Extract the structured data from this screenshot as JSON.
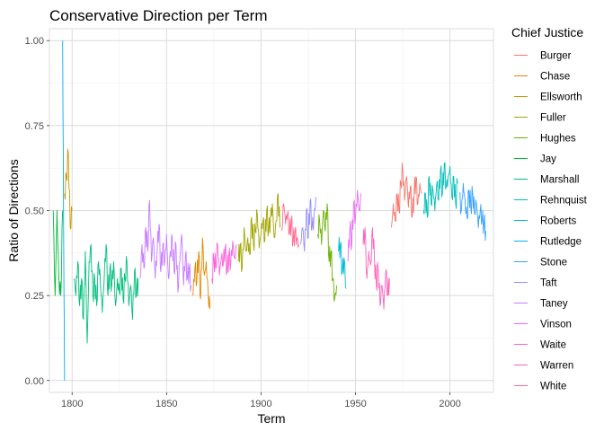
{
  "chart_data": {
    "type": "line",
    "title": "Conservative Direction per Term",
    "xlabel": "Term",
    "ylabel": "Ratio of Directions",
    "xlim": [
      1788,
      2023
    ],
    "ylim": [
      -0.035,
      1.035
    ],
    "x_ticks": [
      1800,
      1850,
      1900,
      1950,
      2000
    ],
    "y_ticks": [
      0.0,
      0.25,
      0.5,
      0.75,
      1.0
    ],
    "y_tick_labels": [
      "0.00",
      "0.25",
      "0.50",
      "0.75",
      "1.00"
    ],
    "grid": true,
    "legend": {
      "title": "Chief Justice",
      "position": "right"
    },
    "series": [
      {
        "name": "Burger",
        "color": "#F8766D",
        "start": 1969,
        "end": 1985,
        "anchors": [
          [
            1969,
            0.45
          ],
          [
            1970,
            0.52
          ],
          [
            1971,
            0.47
          ],
          [
            1972,
            0.55
          ],
          [
            1973,
            0.5
          ],
          [
            1974,
            0.58
          ],
          [
            1975,
            0.62
          ],
          [
            1976,
            0.53
          ],
          [
            1977,
            0.6
          ],
          [
            1978,
            0.51
          ],
          [
            1979,
            0.57
          ],
          [
            1980,
            0.48
          ],
          [
            1981,
            0.55
          ],
          [
            1982,
            0.6
          ],
          [
            1983,
            0.52
          ],
          [
            1984,
            0.58
          ],
          [
            1985,
            0.55
          ]
        ]
      },
      {
        "name": "Chase",
        "color": "#E58700",
        "start": 1864,
        "end": 1873,
        "anchors": [
          [
            1864,
            0.25
          ],
          [
            1865,
            0.33
          ],
          [
            1866,
            0.29
          ],
          [
            1867,
            0.38
          ],
          [
            1868,
            0.24
          ],
          [
            1869,
            0.42
          ],
          [
            1870,
            0.31
          ],
          [
            1871,
            0.35
          ],
          [
            1872,
            0.26
          ],
          [
            1873,
            0.21
          ]
        ]
      },
      {
        "name": "Ellsworth",
        "color": "#C99800",
        "start": 1796,
        "end": 1800,
        "anchors": [
          [
            1796,
            0.55
          ],
          [
            1797,
            0.6
          ],
          [
            1798,
            0.67
          ],
          [
            1799,
            0.45
          ],
          [
            1800,
            0.5
          ]
        ]
      },
      {
        "name": "Fuller",
        "color": "#A3A500",
        "start": 1888,
        "end": 1910,
        "anchors": [
          [
            1888,
            0.35
          ],
          [
            1889,
            0.4
          ],
          [
            1890,
            0.33
          ],
          [
            1891,
            0.45
          ],
          [
            1892,
            0.38
          ],
          [
            1893,
            0.42
          ],
          [
            1894,
            0.37
          ],
          [
            1895,
            0.48
          ],
          [
            1896,
            0.4
          ],
          [
            1897,
            0.44
          ],
          [
            1898,
            0.49
          ],
          [
            1899,
            0.39
          ],
          [
            1900,
            0.43
          ],
          [
            1901,
            0.47
          ],
          [
            1902,
            0.41
          ],
          [
            1903,
            0.5
          ],
          [
            1904,
            0.44
          ],
          [
            1905,
            0.48
          ],
          [
            1906,
            0.52
          ],
          [
            1907,
            0.42
          ],
          [
            1908,
            0.47
          ],
          [
            1909,
            0.55
          ],
          [
            1910,
            0.45
          ]
        ]
      },
      {
        "name": "Hughes",
        "color": "#6BB100",
        "start": 1930,
        "end": 1940,
        "anchors": [
          [
            1930,
            0.43
          ],
          [
            1931,
            0.47
          ],
          [
            1932,
            0.4
          ],
          [
            1933,
            0.5
          ],
          [
            1934,
            0.44
          ],
          [
            1935,
            0.52
          ],
          [
            1936,
            0.35
          ],
          [
            1937,
            0.38
          ],
          [
            1938,
            0.3
          ],
          [
            1939,
            0.24
          ],
          [
            1940,
            0.28
          ]
        ]
      },
      {
        "name": "Jay",
        "color": "#00BA38",
        "start": 1790,
        "end": 1795,
        "anchors": [
          [
            1790,
            0.5
          ],
          [
            1791,
            0.25
          ],
          [
            1792,
            0.5
          ],
          [
            1793,
            0.3
          ],
          [
            1794,
            0.25
          ],
          [
            1795,
            0.5
          ]
        ]
      },
      {
        "name": "Marshall",
        "color": "#00BF7D",
        "start": 1801,
        "end": 1835,
        "anchors": [
          [
            1801,
            0.3
          ],
          [
            1802,
            0.25
          ],
          [
            1803,
            0.35
          ],
          [
            1804,
            0.22
          ],
          [
            1805,
            0.3
          ],
          [
            1806,
            0.18
          ],
          [
            1807,
            0.38
          ],
          [
            1808,
            0.11
          ],
          [
            1809,
            0.35
          ],
          [
            1810,
            0.4
          ],
          [
            1811,
            0.25
          ],
          [
            1812,
            0.3
          ],
          [
            1813,
            0.22
          ],
          [
            1814,
            0.35
          ],
          [
            1815,
            0.28
          ],
          [
            1816,
            0.2
          ],
          [
            1817,
            0.3
          ],
          [
            1818,
            0.4
          ],
          [
            1819,
            0.25
          ],
          [
            1820,
            0.33
          ],
          [
            1821,
            0.28
          ],
          [
            1822,
            0.35
          ],
          [
            1823,
            0.22
          ],
          [
            1824,
            0.3
          ],
          [
            1825,
            0.26
          ],
          [
            1826,
            0.33
          ],
          [
            1827,
            0.24
          ],
          [
            1828,
            0.3
          ],
          [
            1829,
            0.35
          ],
          [
            1830,
            0.22
          ],
          [
            1831,
            0.28
          ],
          [
            1832,
            0.18
          ],
          [
            1833,
            0.32
          ],
          [
            1834,
            0.25
          ],
          [
            1835,
            0.3
          ]
        ]
      },
      {
        "name": "Rehnquist",
        "color": "#00C0B8",
        "start": 1986,
        "end": 2004,
        "anchors": [
          [
            1986,
            0.5
          ],
          [
            1987,
            0.55
          ],
          [
            1988,
            0.48
          ],
          [
            1989,
            0.6
          ],
          [
            1990,
            0.52
          ],
          [
            1991,
            0.56
          ],
          [
            1992,
            0.5
          ],
          [
            1993,
            0.58
          ],
          [
            1994,
            0.53
          ],
          [
            1995,
            0.62
          ],
          [
            1996,
            0.55
          ],
          [
            1997,
            0.64
          ],
          [
            1998,
            0.57
          ],
          [
            1999,
            0.6
          ],
          [
            2000,
            0.63
          ],
          [
            2001,
            0.54
          ],
          [
            2002,
            0.6
          ],
          [
            2003,
            0.52
          ],
          [
            2004,
            0.58
          ]
        ]
      },
      {
        "name": "Roberts",
        "color": "#00BCD8",
        "start": 1941,
        "end": 1945,
        "anchors": [
          [
            1941,
            0.38
          ],
          [
            1942,
            0.4
          ],
          [
            1943,
            0.32
          ],
          [
            1944,
            0.36
          ],
          [
            1945,
            0.27
          ]
        ]
      },
      {
        "name": "Rutledge",
        "color": "#00B0F6",
        "start": 1795,
        "end": 1796,
        "anchors": [
          [
            1795,
            1.0
          ],
          [
            1795.5,
            0.45
          ],
          [
            1796,
            0.0
          ]
        ]
      },
      {
        "name": "Stone",
        "color": "#35A2FF",
        "start": 2005,
        "end": 2019,
        "anchors": [
          [
            2005,
            0.55
          ],
          [
            2006,
            0.5
          ],
          [
            2007,
            0.58
          ],
          [
            2008,
            0.53
          ],
          [
            2009,
            0.48
          ],
          [
            2010,
            0.56
          ],
          [
            2011,
            0.51
          ],
          [
            2012,
            0.55
          ],
          [
            2013,
            0.49
          ],
          [
            2014,
            0.52
          ],
          [
            2015,
            0.45
          ],
          [
            2016,
            0.5
          ],
          [
            2017,
            0.47
          ],
          [
            2018,
            0.46
          ],
          [
            2019,
            0.44
          ]
        ]
      },
      {
        "name": "Taft",
        "color": "#9590FF",
        "start": 1921,
        "end": 1929,
        "anchors": [
          [
            1921,
            0.4
          ],
          [
            1922,
            0.45
          ],
          [
            1923,
            0.38
          ],
          [
            1924,
            0.5
          ],
          [
            1925,
            0.42
          ],
          [
            1926,
            0.53
          ],
          [
            1927,
            0.45
          ],
          [
            1928,
            0.48
          ],
          [
            1929,
            0.54
          ]
        ]
      },
      {
        "name": "Taney",
        "color": "#C77CFF",
        "start": 1836,
        "end": 1863,
        "anchors": [
          [
            1836,
            0.3
          ],
          [
            1837,
            0.4
          ],
          [
            1838,
            0.33
          ],
          [
            1839,
            0.45
          ],
          [
            1840,
            0.38
          ],
          [
            1841,
            0.53
          ],
          [
            1842,
            0.35
          ],
          [
            1843,
            0.42
          ],
          [
            1844,
            0.3
          ],
          [
            1845,
            0.38
          ],
          [
            1846,
            0.46
          ],
          [
            1847,
            0.32
          ],
          [
            1848,
            0.4
          ],
          [
            1849,
            0.35
          ],
          [
            1850,
            0.43
          ],
          [
            1851,
            0.3
          ],
          [
            1852,
            0.38
          ],
          [
            1853,
            0.42
          ],
          [
            1854,
            0.32
          ],
          [
            1855,
            0.4
          ],
          [
            1856,
            0.26
          ],
          [
            1857,
            0.35
          ],
          [
            1858,
            0.43
          ],
          [
            1859,
            0.28
          ],
          [
            1860,
            0.37
          ],
          [
            1861,
            0.3
          ],
          [
            1862,
            0.33
          ],
          [
            1863,
            0.28
          ]
        ]
      },
      {
        "name": "Vinson",
        "color": "#E76BF3",
        "start": 1946,
        "end": 1953,
        "anchors": [
          [
            1946,
            0.35
          ],
          [
            1947,
            0.45
          ],
          [
            1948,
            0.4
          ],
          [
            1949,
            0.52
          ],
          [
            1950,
            0.48
          ],
          [
            1951,
            0.56
          ],
          [
            1952,
            0.5
          ],
          [
            1953,
            0.55
          ]
        ]
      },
      {
        "name": "Waite",
        "color": "#FA62DB",
        "start": 1874,
        "end": 1887,
        "anchors": [
          [
            1874,
            0.3
          ],
          [
            1875,
            0.36
          ],
          [
            1876,
            0.33
          ],
          [
            1877,
            0.4
          ],
          [
            1878,
            0.31
          ],
          [
            1879,
            0.36
          ],
          [
            1880,
            0.34
          ],
          [
            1881,
            0.39
          ],
          [
            1882,
            0.32
          ],
          [
            1883,
            0.37
          ],
          [
            1884,
            0.35
          ],
          [
            1885,
            0.41
          ],
          [
            1886,
            0.36
          ],
          [
            1887,
            0.4
          ]
        ]
      },
      {
        "name": "Warren",
        "color": "#FF62BC",
        "start": 1954,
        "end": 1968,
        "anchors": [
          [
            1954,
            0.4
          ],
          [
            1955,
            0.45
          ],
          [
            1956,
            0.3
          ],
          [
            1957,
            0.38
          ],
          [
            1958,
            0.34
          ],
          [
            1959,
            0.45
          ],
          [
            1960,
            0.36
          ],
          [
            1961,
            0.28
          ],
          [
            1962,
            0.33
          ],
          [
            1963,
            0.22
          ],
          [
            1964,
            0.28
          ],
          [
            1965,
            0.21
          ],
          [
            1966,
            0.32
          ],
          [
            1967,
            0.25
          ],
          [
            1968,
            0.3
          ]
        ]
      },
      {
        "name": "White",
        "color": "#FF6C91",
        "start": 1911,
        "end": 1920,
        "anchors": [
          [
            1911,
            0.44
          ],
          [
            1912,
            0.52
          ],
          [
            1913,
            0.46
          ],
          [
            1914,
            0.49
          ],
          [
            1915,
            0.43
          ],
          [
            1916,
            0.47
          ],
          [
            1917,
            0.41
          ],
          [
            1918,
            0.44
          ],
          [
            1919,
            0.42
          ],
          [
            1920,
            0.4
          ]
        ]
      }
    ]
  }
}
